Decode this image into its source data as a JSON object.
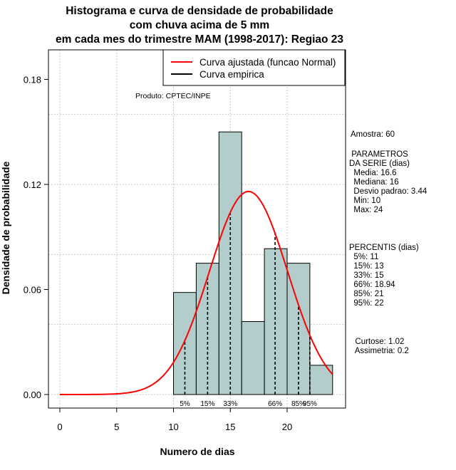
{
  "title_lines": [
    "Histograma e curva de densidade de probabilidade",
    "com chuva acima de 5 mm",
    "em cada mes do trimestre MAM (1998-2017): Regiao 23"
  ],
  "chart_data": {
    "type": "bar",
    "subtype": "histogram",
    "xlabel": "Numero de dias",
    "ylabel": "Densidade de probabilidade",
    "xlim": [
      -1,
      25
    ],
    "ylim": [
      0,
      0.19
    ],
    "xticks": [
      0,
      5,
      10,
      15,
      20
    ],
    "yticks": [
      0.0,
      0.06,
      0.12,
      0.18
    ],
    "ytick_labels": [
      "0.00",
      "0.06",
      "0.12",
      "0.18"
    ],
    "grid": true,
    "bins": [
      {
        "start": 10,
        "end": 12,
        "density": 0.0583
      },
      {
        "start": 12,
        "end": 14,
        "density": 0.075
      },
      {
        "start": 14,
        "end": 16,
        "density": 0.15
      },
      {
        "start": 16,
        "end": 18,
        "density": 0.0417
      },
      {
        "start": 18,
        "end": 20,
        "density": 0.0833
      },
      {
        "start": 20,
        "end": 22,
        "density": 0.075
      },
      {
        "start": 22,
        "end": 24,
        "density": 0.0167
      }
    ],
    "bar_color": "#b3cccc",
    "curve": {
      "name": "Curva ajustada (funcao Normal)",
      "mean": 16.6,
      "sd": 3.44,
      "x_range": [
        0,
        24
      ],
      "color": "#ff0000"
    },
    "percentile_lines": [
      {
        "label": "5%",
        "x": 11
      },
      {
        "label": "15%",
        "x": 13
      },
      {
        "label": "33%",
        "x": 15
      },
      {
        "label": "66%",
        "x": 18.94
      },
      {
        "label": "85%",
        "x": 21
      },
      {
        "label": "95%",
        "x": 22
      }
    ],
    "legend": {
      "position": "top-right",
      "entries": [
        {
          "label": "Curva ajustada (funcao Normal)",
          "color": "#ff0000"
        },
        {
          "label": "Curva empirica",
          "color": "#000000"
        }
      ]
    },
    "annotation": "Produto: CPTEC/INPE"
  },
  "stats": {
    "amostra": "Amostra: 60",
    "parametros_lines": [
      " PARAMETROS",
      "DA SERIE (dias)",
      "  Media: 16.6",
      "  Mediana: 16",
      "  Desvio padrao: 3.44",
      "  Min: 10",
      "  Max: 24"
    ],
    "percentis_lines": [
      "PERCENTIS (dias)",
      "  5%: 11",
      "  15%: 13",
      "  33%: 15",
      "  66%: 18.94",
      "  85%: 21",
      "  95%: 22"
    ],
    "forma_lines": [
      "  Curtose: 1.02",
      "  Assimetria: 0.2"
    ]
  }
}
